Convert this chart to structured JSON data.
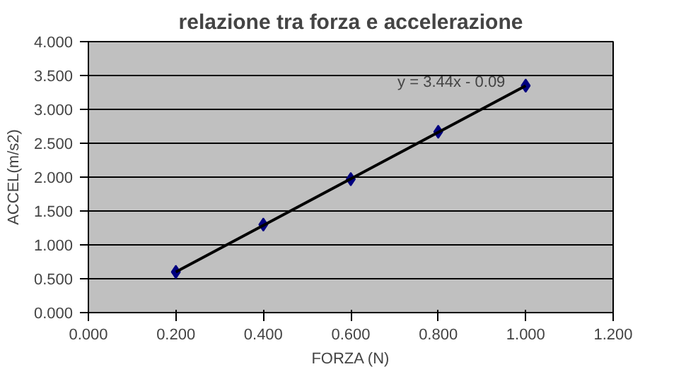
{
  "chart_data": {
    "type": "scatter",
    "title": "relazione tra forza e accelerazione",
    "xlabel": "FORZA (N)",
    "ylabel": "ACCEL(m/s2)",
    "x": [
      0.2,
      0.4,
      0.6,
      0.8,
      1.0
    ],
    "series": [
      {
        "color": "#000080",
        "values": [
          0.6,
          1.3,
          1.97,
          2.67,
          3.35
        ],
        "marker": "diamond"
      },
      {
        "type": "line",
        "color": "#000000",
        "x": [
          0.2,
          1.0
        ],
        "values": [
          0.6,
          3.35
        ],
        "marker": "none",
        "line_style": "solid"
      }
    ],
    "annotations": [
      "y = 3.44x - 0.09"
    ],
    "xlim": [
      0,
      1.2
    ],
    "ylim": [
      0,
      4
    ],
    "xticks": [
      {
        "value": 0,
        "label": "0.000"
      },
      {
        "value": 0.2,
        "label": "0.200"
      },
      {
        "value": 0.4,
        "label": "0.400"
      },
      {
        "value": 0.6,
        "label": "0.600"
      },
      {
        "value": 0.8,
        "label": "0.800"
      },
      {
        "value": 1.0,
        "label": "1.000"
      },
      {
        "value": 1.2,
        "label": "1.200"
      }
    ],
    "yticks": [
      {
        "value": 0,
        "label": "0.000"
      },
      {
        "value": 0.5,
        "label": "0.500"
      },
      {
        "value": 1.0,
        "label": "1.000"
      },
      {
        "value": 1.5,
        "label": "1.500"
      },
      {
        "value": 2.0,
        "label": "2.000"
      },
      {
        "value": 2.5,
        "label": "2.500"
      },
      {
        "value": 3.0,
        "label": "3.000"
      },
      {
        "value": 3.5,
        "label": "3.500"
      },
      {
        "value": 4.0,
        "label": "4.000"
      }
    ],
    "grid": "y"
  }
}
